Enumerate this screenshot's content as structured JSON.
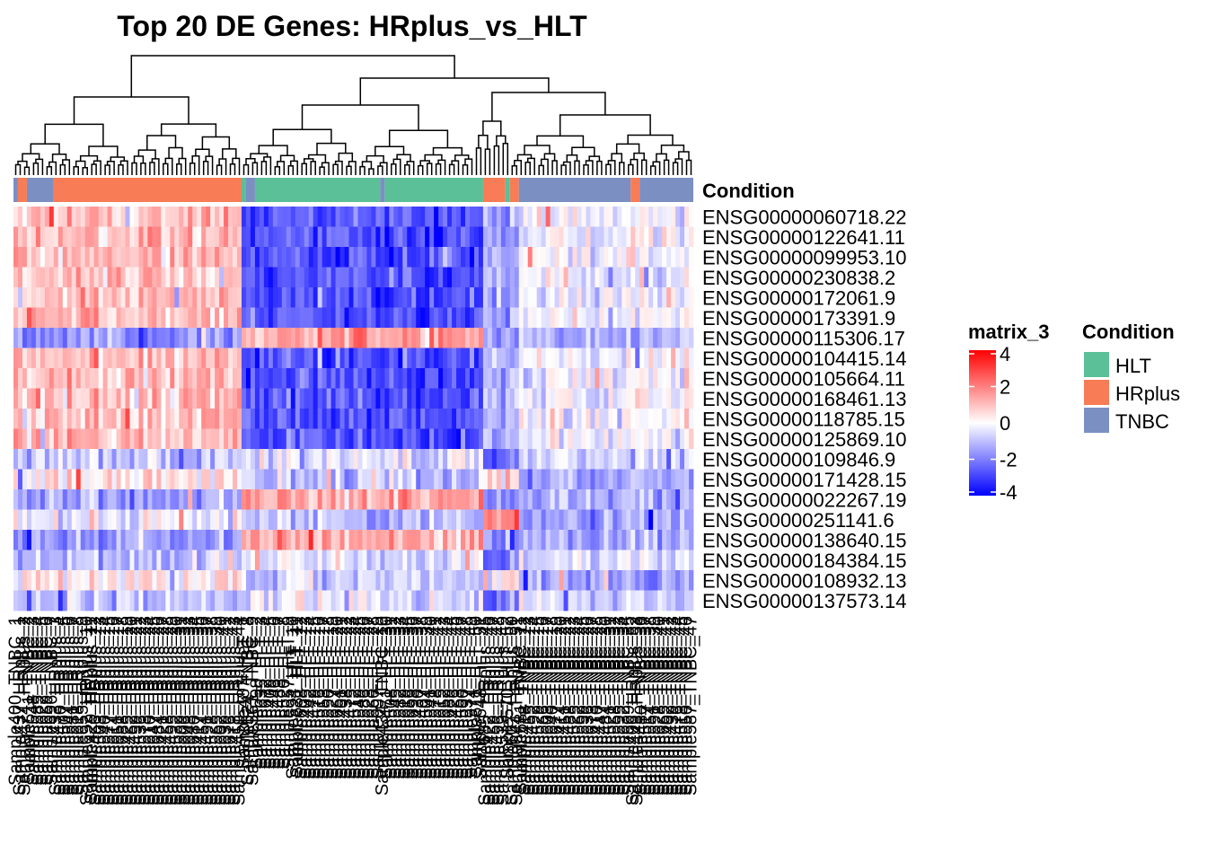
{
  "chart_data": {
    "type": "heatmap",
    "title": "Top 20 DE Genes: HRplus_vs_HLT",
    "row_labels": [
      "ENSG00000060718.22",
      "ENSG00000122641.11",
      "ENSG00000099953.10",
      "ENSG00000230838.2",
      "ENSG00000172061.9",
      "ENSG00000173391.9",
      "ENSG00000115306.17",
      "ENSG00000104415.14",
      "ENSG00000105664.11",
      "ENSG00000168461.13",
      "ENSG00000118785.15",
      "ENSG00000125869.10",
      "ENSG00000109846.9",
      "ENSG00000171428.15",
      "ENSG00000022267.19",
      "ENSG00000251141.6",
      "ENSG00000138640.15",
      "ENSG00000184384.15",
      "ENSG00000108932.13",
      "ENSG00000137573.14"
    ],
    "row_pattern": [
      "A",
      "A",
      "A",
      "A",
      "A",
      "A",
      "B",
      "A",
      "A",
      "A",
      "A",
      "A",
      "C",
      "D",
      "B",
      "E",
      "B",
      "C",
      "D",
      "C"
    ],
    "pattern_levels": {
      "A": {
        "HRplus": 1.0,
        "HLT": -2.7,
        "G4": -1.2,
        "TNBC": -0.2
      },
      "B": {
        "HRplus": -1.6,
        "HLT": 1.3,
        "G4": -1.6,
        "TNBC": -1.3
      },
      "C": {
        "HRplus": -0.9,
        "HLT": -0.5,
        "G4": -2.2,
        "TNBC": -0.6
      },
      "D": {
        "HRplus": 0.3,
        "HLT": -0.9,
        "G4": 0.9,
        "TNBC": -1.5
      },
      "E": {
        "HRplus": -0.2,
        "HLT": -1.1,
        "G4": 2.2,
        "TNBC": -1.4
      }
    },
    "column_blocks": [
      {
        "condition": "TNBC",
        "n": 1,
        "cluster": "HRplus"
      },
      {
        "condition": "HRplus",
        "n": 2,
        "cluster": "HRplus"
      },
      {
        "condition": "TNBC",
        "n": 6,
        "cluster": "HRplus"
      },
      {
        "condition": "HRplus",
        "n": 42,
        "cluster": "HRplus"
      },
      {
        "condition": "HLT",
        "n": 1,
        "cluster": "HLT"
      },
      {
        "condition": "TNBC",
        "n": 2,
        "cluster": "HLT"
      },
      {
        "condition": "HLT",
        "n": 28,
        "cluster": "HLT"
      },
      {
        "condition": "TNBC",
        "n": 1,
        "cluster": "HLT"
      },
      {
        "condition": "HLT",
        "n": 22,
        "cluster": "HLT"
      },
      {
        "condition": "HRplus",
        "n": 5,
        "cluster": "G4"
      },
      {
        "condition": "HLT",
        "n": 1,
        "cluster": "G4"
      },
      {
        "condition": "HRplus",
        "n": 2,
        "cluster": "G4"
      },
      {
        "condition": "TNBC",
        "n": 25,
        "cluster": "TNBC"
      },
      {
        "condition": "HRplus",
        "n": 2,
        "cluster": "TNBC"
      },
      {
        "condition": "TNBC",
        "n": 12,
        "cluster": "TNBC"
      }
    ],
    "n_samples": 152,
    "annotation_label": "Condition",
    "color_scale": {
      "title": "matrix_3",
      "ticks": [
        4,
        2,
        0,
        -2,
        -4
      ],
      "range": [
        -4,
        4
      ],
      "low": "#0000ff",
      "mid": "#ffffff",
      "high": "#ff0000"
    },
    "condition_legend": {
      "title": "Condition",
      "entries": [
        {
          "name": "HLT",
          "color": "#5bbf98"
        },
        {
          "name": "HRplus",
          "color": "#f87c55"
        },
        {
          "name": "TNBC",
          "color": "#7b8fc2"
        }
      ]
    }
  }
}
